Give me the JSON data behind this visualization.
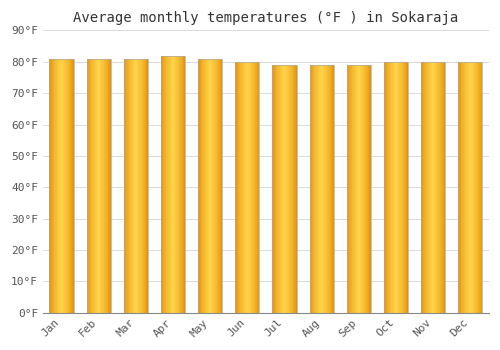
{
  "title": "Average monthly temperatures (°F ) in Sokaraja",
  "months": [
    "Jan",
    "Feb",
    "Mar",
    "Apr",
    "May",
    "Jun",
    "Jul",
    "Aug",
    "Sep",
    "Oct",
    "Nov",
    "Dec"
  ],
  "values": [
    81,
    81,
    81,
    82,
    81,
    80,
    79,
    79,
    79,
    80,
    80,
    80
  ],
  "ylim": [
    0,
    90
  ],
  "ytick_step": 10,
  "bar_color_center": "#FFD44A",
  "bar_color_edge": "#E08800",
  "bar_border_color": "#AAAAAA",
  "background_color": "#FFFFFF",
  "grid_color": "#CCCCCC",
  "title_fontsize": 10,
  "tick_fontsize": 8,
  "font_family": "monospace",
  "bar_width": 0.65,
  "num_strips": 30
}
